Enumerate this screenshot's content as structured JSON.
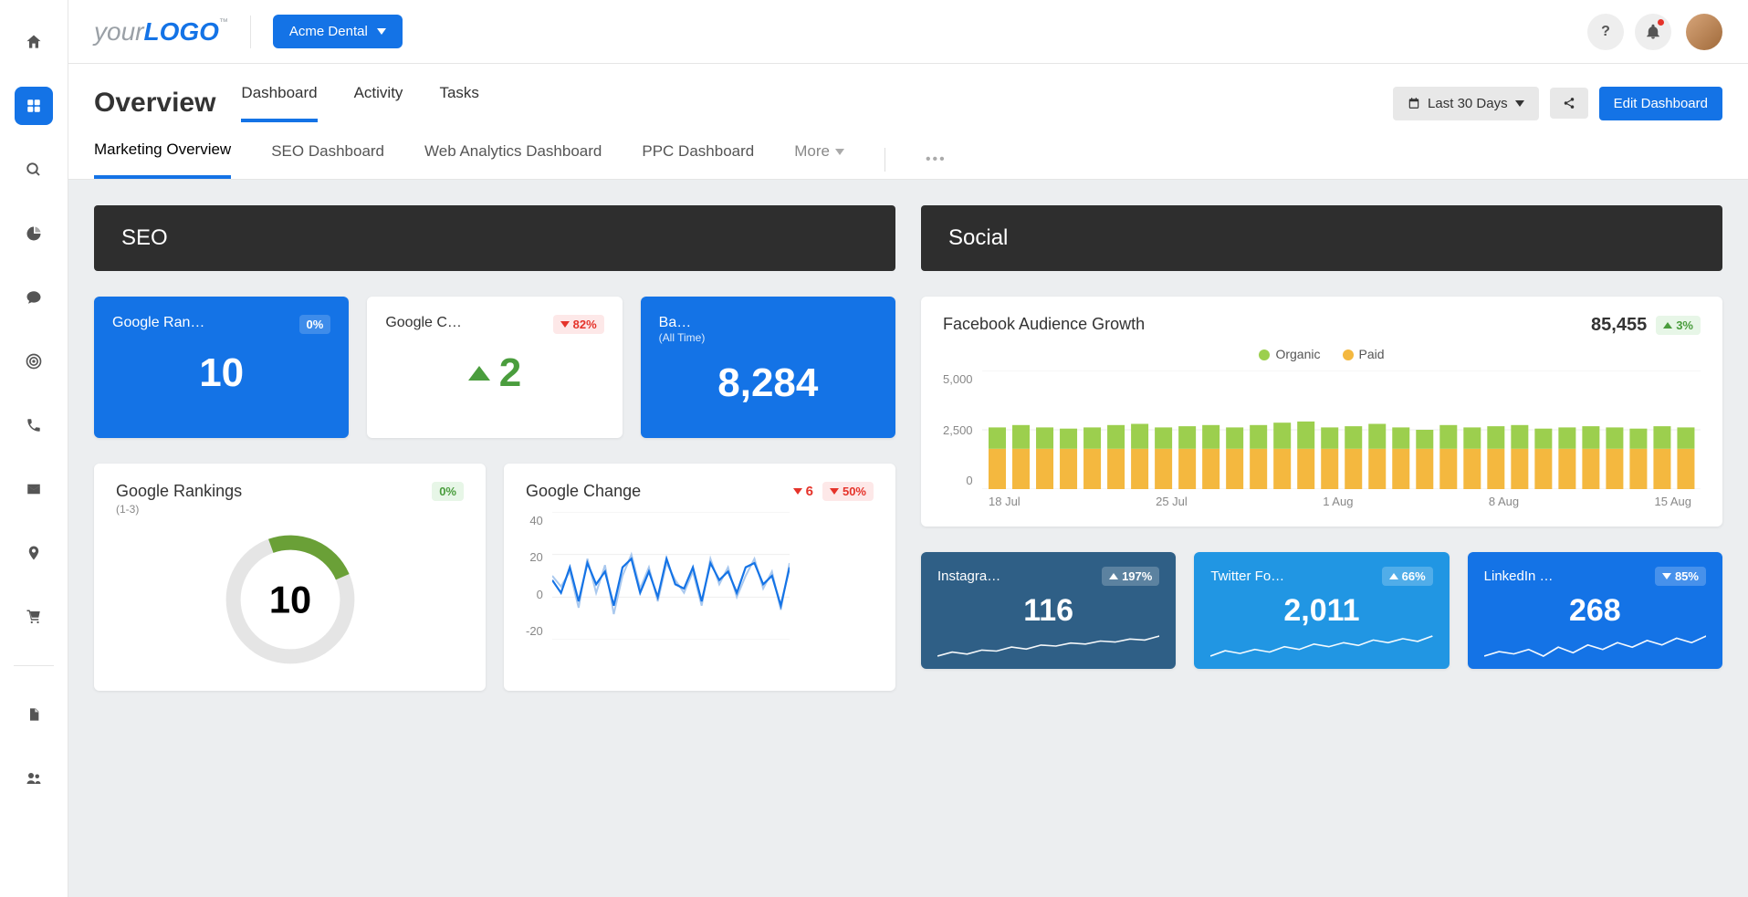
{
  "logo": {
    "part1": "your",
    "part2": "LOGO",
    "tm": "™"
  },
  "org_picker": {
    "label": "Acme Dental"
  },
  "header": {
    "title": "Overview",
    "tabs": [
      "Dashboard",
      "Activity",
      "Tasks"
    ],
    "date_range": "Last 30 Days",
    "edit_button": "Edit Dashboard"
  },
  "secondary_tabs": [
    "Marketing Overview",
    "SEO Dashboard",
    "Web Analytics Dashboard",
    "PPC Dashboard"
  ],
  "more_label": "More",
  "seo": {
    "header": "SEO",
    "tiles": {
      "rankings": {
        "title": "Google Ran…",
        "badge": "0%",
        "value": "10"
      },
      "change": {
        "title": "Google C…",
        "badge": "82%",
        "value": "2"
      },
      "backlinks": {
        "title": "Backlinks",
        "sub": "(All Time)",
        "value": "8,284"
      }
    },
    "rankings_card": {
      "title": "Google Rankings",
      "sub": "(1-3)",
      "badge": "0%",
      "value": "10",
      "gauge": {
        "percent": 24,
        "stroke": 20,
        "track": "#e5e5e5",
        "fill": "#6aa037"
      }
    },
    "change_card": {
      "title": "Google Change",
      "delta_value": "6",
      "badge": "50%",
      "y_ticks": [
        "40",
        "20",
        "0",
        "-20"
      ],
      "series1_color": "#a9c8ee",
      "series2_color": "#1473e6",
      "series1": [
        10,
        5,
        12,
        -5,
        18,
        2,
        15,
        -8,
        10,
        20,
        4,
        14,
        -2,
        16,
        8,
        2,
        12,
        -4,
        18,
        6,
        14,
        0,
        10,
        18,
        4,
        12,
        -6,
        16
      ],
      "series2": [
        8,
        2,
        14,
        -2,
        16,
        6,
        12,
        -4,
        14,
        18,
        2,
        12,
        0,
        18,
        6,
        4,
        14,
        -2,
        16,
        8,
        12,
        2,
        14,
        16,
        6,
        10,
        -4,
        14
      ]
    }
  },
  "social": {
    "header": "Social",
    "fb_card": {
      "title": "Facebook Audience Growth",
      "stat": "85,455",
      "delta": "3%",
      "legend": [
        {
          "label": "Organic",
          "color": "#9ccf4e"
        },
        {
          "label": "Paid",
          "color": "#f4b83f"
        }
      ],
      "y_ticks": [
        "5,000",
        "2,500",
        "0"
      ],
      "x_ticks": [
        "18 Jul",
        "25 Jul",
        "1 Aug",
        "8 Aug",
        "15 Aug"
      ],
      "ymax": 5000,
      "paid": [
        1700,
        1700,
        1700,
        1700,
        1700,
        1700,
        1700,
        1700,
        1700,
        1700,
        1700,
        1700,
        1700,
        1700,
        1700,
        1700,
        1700,
        1700,
        1700,
        1700,
        1700,
        1700,
        1700,
        1700,
        1700,
        1700,
        1700,
        1700,
        1700,
        1700
      ],
      "organic": [
        900,
        1000,
        900,
        850,
        900,
        1000,
        1050,
        900,
        950,
        1000,
        900,
        1000,
        1100,
        1150,
        900,
        950,
        1050,
        900,
        800,
        1000,
        900,
        950,
        1000,
        850,
        900,
        950,
        900,
        850,
        950,
        900
      ]
    },
    "minis": {
      "instagram": {
        "title": "Instagra…",
        "badge": "197%",
        "dir": "up",
        "value": "116",
        "bg": "#2f5f86",
        "spark": [
          10,
          18,
          14,
          22,
          20,
          28,
          24,
          32,
          30,
          36,
          34,
          40,
          38,
          44,
          42,
          50
        ]
      },
      "twitter": {
        "title": "Twitter Fo…",
        "badge": "66%",
        "dir": "up",
        "value": "2,011",
        "bg": "#2196e3",
        "spark": [
          20,
          28,
          24,
          30,
          26,
          34,
          30,
          38,
          34,
          40,
          36,
          44,
          40,
          46,
          42,
          50
        ]
      },
      "linkedin": {
        "title": "LinkedIn …",
        "badge": "85%",
        "dir": "down",
        "value": "268",
        "bg": "#1473e6",
        "spark": [
          22,
          26,
          24,
          28,
          22,
          30,
          25,
          32,
          28,
          34,
          30,
          36,
          32,
          38,
          34,
          40
        ]
      }
    }
  },
  "colors": {
    "primary": "#1473e6",
    "green": "#4a9d3d",
    "red": "#e5332a"
  }
}
